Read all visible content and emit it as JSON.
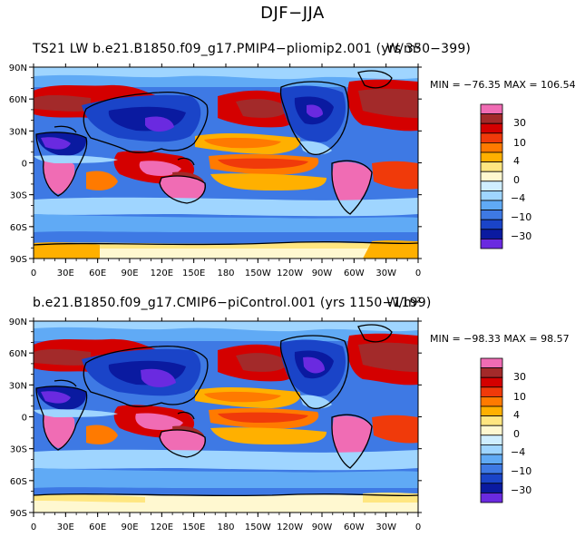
{
  "figure": {
    "title": "DJF−JJA"
  },
  "chart_data": [
    {
      "type": "heatmap",
      "title_left": "TS21 LW b.e21.B1850.f09_g17.PMIP4−pliomip2.001 (yrs 350−399)",
      "title_right": "W/m²",
      "stats": "MIN = −76.35 MAX = 106.54",
      "min": -76.35,
      "max": 106.54,
      "x_ticks": [
        "0",
        "30E",
        "60E",
        "90E",
        "120E",
        "150E",
        "180",
        "150W",
        "120W",
        "90W",
        "60W",
        "30W",
        "0"
      ],
      "y_ticks": [
        "90N",
        "60N",
        "30N",
        "0",
        "30S",
        "60S",
        "90S"
      ],
      "colorbar_labels": [
        "30",
        "10",
        "4",
        "0",
        "−4",
        "−10",
        "−30"
      ],
      "variable": "DJF minus JJA longwave radiation difference"
    },
    {
      "type": "heatmap",
      "title_left": "b.e21.B1850.f09_g17.CMIP6−piControl.001 (yrs 1150−1199)",
      "title_right": "W/m²",
      "stats": "MIN = −98.33 MAX = 98.57",
      "min": -98.33,
      "max": 98.57,
      "x_ticks": [
        "0",
        "30E",
        "60E",
        "90E",
        "120E",
        "150E",
        "180",
        "150W",
        "120W",
        "90W",
        "60W",
        "30W",
        "0"
      ],
      "y_ticks": [
        "90N",
        "60N",
        "30N",
        "0",
        "30S",
        "60S",
        "90S"
      ],
      "colorbar_labels": [
        "30",
        "10",
        "4",
        "0",
        "−4",
        "−10",
        "−30"
      ],
      "variable": "DJF minus JJA longwave radiation difference"
    }
  ],
  "colors": {
    "levels": [
      "#f06cb4",
      "#a32a2a",
      "#d40000",
      "#f03a0a",
      "#ff7a00",
      "#ffb000",
      "#ffe680",
      "#fff8d0",
      "#cfeeff",
      "#9fd5ff",
      "#60aaf5",
      "#3e79e4",
      "#1a44c8",
      "#0a1aa0",
      "#6a2ae0"
    ],
    "ocean_cold": "#3e79e4",
    "coast": "#000000"
  }
}
